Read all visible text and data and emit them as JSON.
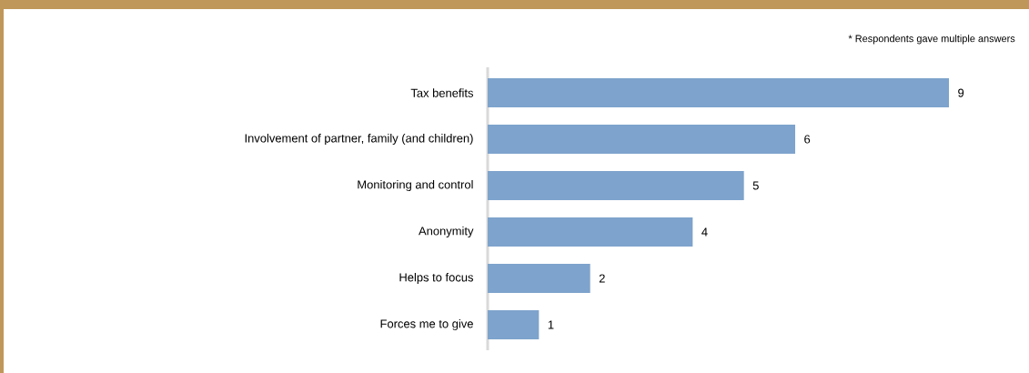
{
  "chart_data": {
    "type": "bar",
    "orientation": "horizontal",
    "categories": [
      "Tax benefits",
      "Involvement of partner, family (and children)",
      "Monitoring and control",
      "Anonymity",
      "Helps to focus",
      "Forces me to give"
    ],
    "values": [
      9,
      6,
      5,
      4,
      2,
      1
    ],
    "color": "#7ea3cc",
    "data_labels": true,
    "grid": false,
    "tick_labels": "y",
    "annotations": [
      "* Respondents gave multiple answers"
    ]
  }
}
